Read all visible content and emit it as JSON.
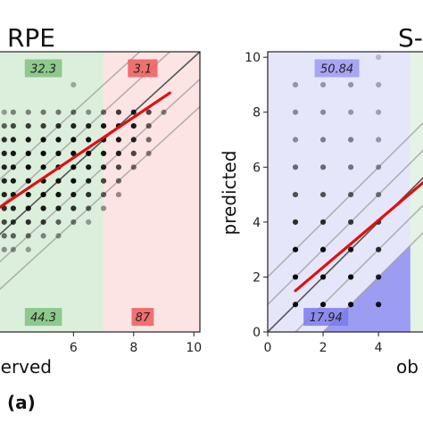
{
  "figure": {
    "panel_label": "(a)"
  },
  "chart_data": [
    {
      "type": "scatter",
      "title": "RPE",
      "xlabel": "observed",
      "ylabel": "",
      "xticks": [
        "6",
        "8",
        "10"
      ],
      "xlim": [
        3.5,
        10.2
      ],
      "ylim": [
        0,
        10.2
      ],
      "regions": [
        {
          "xmin": 3.5,
          "xmax": 7,
          "color": "#dcefdc"
        },
        {
          "xmin": 7,
          "xmax": 10.2,
          "color": "#fde4e4"
        }
      ],
      "triangle_color": "#f26b6b",
      "annotations": [
        {
          "text": "32.3",
          "x": 5.0,
          "y": 9.6,
          "color": "#7fc27f"
        },
        {
          "text": "3.1",
          "x": 8.3,
          "y": 9.6,
          "color": "#ee5a5a"
        },
        {
          "text": "44.3",
          "x": 5.0,
          "y": 0.55,
          "color": "#7fc27f"
        },
        {
          "text": "87",
          "x": 8.3,
          "y": 0.55,
          "color": "#ee5a5a"
        }
      ],
      "identity_band": [
        1,
        2
      ],
      "fit_line": {
        "x": [
          3.5,
          9.2
        ],
        "y": [
          4.5,
          8.7
        ],
        "color": "#e01010"
      },
      "points": [
        {
          "x": 6,
          "y": 9,
          "shade": 0.3
        },
        {
          "x": 3.7,
          "y": 8,
          "shade": 0.35
        },
        {
          "x": 4,
          "y": 8,
          "shade": 0.45
        },
        {
          "x": 4.5,
          "y": 8,
          "shade": 0.45
        },
        {
          "x": 5,
          "y": 8,
          "shade": 0.5
        },
        {
          "x": 5.5,
          "y": 8,
          "shade": 0.5
        },
        {
          "x": 6,
          "y": 8,
          "shade": 0.55
        },
        {
          "x": 6.5,
          "y": 8,
          "shade": 0.4
        },
        {
          "x": 7,
          "y": 8,
          "shade": 0.55
        },
        {
          "x": 7.5,
          "y": 8,
          "shade": 0.75
        },
        {
          "x": 8,
          "y": 8,
          "shade": 0.85
        },
        {
          "x": 8.5,
          "y": 8,
          "shade": 0.7
        },
        {
          "x": 9,
          "y": 8,
          "shade": 0.45
        },
        {
          "x": 3.7,
          "y": 7.5,
          "shade": 0.6
        },
        {
          "x": 4,
          "y": 7.5,
          "shade": 0.7
        },
        {
          "x": 4.5,
          "y": 7.5,
          "shade": 0.75
        },
        {
          "x": 5,
          "y": 7.5,
          "shade": 0.75
        },
        {
          "x": 5.5,
          "y": 7.5,
          "shade": 0.8
        },
        {
          "x": 6,
          "y": 7.5,
          "shade": 0.85
        },
        {
          "x": 6.5,
          "y": 7.5,
          "shade": 0.85
        },
        {
          "x": 7,
          "y": 7.5,
          "shade": 0.9
        },
        {
          "x": 7.5,
          "y": 7.5,
          "shade": 0.9
        },
        {
          "x": 8,
          "y": 7.5,
          "shade": 0.9
        },
        {
          "x": 8.5,
          "y": 7.5,
          "shade": 0.6
        },
        {
          "x": 3.7,
          "y": 7,
          "shade": 0.8
        },
        {
          "x": 4,
          "y": 7,
          "shade": 0.85
        },
        {
          "x": 4.5,
          "y": 7,
          "shade": 0.9
        },
        {
          "x": 5,
          "y": 7,
          "shade": 0.95
        },
        {
          "x": 5.5,
          "y": 7,
          "shade": 0.95
        },
        {
          "x": 6,
          "y": 7,
          "shade": 0.95
        },
        {
          "x": 6.5,
          "y": 7,
          "shade": 0.95
        },
        {
          "x": 7,
          "y": 7,
          "shade": 0.95
        },
        {
          "x": 7.5,
          "y": 7,
          "shade": 0.9
        },
        {
          "x": 8,
          "y": 7,
          "shade": 0.85
        },
        {
          "x": 8.5,
          "y": 7,
          "shade": 0.55
        },
        {
          "x": 3.7,
          "y": 6.5,
          "shade": 0.85
        },
        {
          "x": 4,
          "y": 6.5,
          "shade": 0.9
        },
        {
          "x": 4.5,
          "y": 6.5,
          "shade": 0.95
        },
        {
          "x": 5,
          "y": 6.5,
          "shade": 0.95
        },
        {
          "x": 5.5,
          "y": 6.5,
          "shade": 0.95
        },
        {
          "x": 6,
          "y": 6.5,
          "shade": 0.95
        },
        {
          "x": 6.5,
          "y": 6.5,
          "shade": 0.95
        },
        {
          "x": 7,
          "y": 6.5,
          "shade": 0.9
        },
        {
          "x": 7.5,
          "y": 6.5,
          "shade": 0.85
        },
        {
          "x": 8,
          "y": 6.5,
          "shade": 0.7
        },
        {
          "x": 8.5,
          "y": 6.5,
          "shade": 0.45
        },
        {
          "x": 3.7,
          "y": 6,
          "shade": 0.85
        },
        {
          "x": 4,
          "y": 6,
          "shade": 0.9
        },
        {
          "x": 4.5,
          "y": 6,
          "shade": 0.95
        },
        {
          "x": 5,
          "y": 6,
          "shade": 0.95
        },
        {
          "x": 5.5,
          "y": 6,
          "shade": 0.95
        },
        {
          "x": 6,
          "y": 6,
          "shade": 0.95
        },
        {
          "x": 6.5,
          "y": 6,
          "shade": 0.9
        },
        {
          "x": 7,
          "y": 6,
          "shade": 0.85
        },
        {
          "x": 7.5,
          "y": 6,
          "shade": 0.7
        },
        {
          "x": 8,
          "y": 6,
          "shade": 0.55
        },
        {
          "x": 3.7,
          "y": 5.5,
          "shade": 0.85
        },
        {
          "x": 4,
          "y": 5.5,
          "shade": 0.9
        },
        {
          "x": 4.5,
          "y": 5.5,
          "shade": 0.95
        },
        {
          "x": 5,
          "y": 5.5,
          "shade": 0.95
        },
        {
          "x": 5.5,
          "y": 5.5,
          "shade": 0.95
        },
        {
          "x": 6,
          "y": 5.5,
          "shade": 0.95
        },
        {
          "x": 6.5,
          "y": 5.5,
          "shade": 0.85
        },
        {
          "x": 7,
          "y": 5.5,
          "shade": 0.7
        },
        {
          "x": 7.5,
          "y": 5.5,
          "shade": 0.55
        },
        {
          "x": 3.7,
          "y": 5,
          "shade": 0.85
        },
        {
          "x": 4,
          "y": 5,
          "shade": 0.9
        },
        {
          "x": 4.5,
          "y": 5,
          "shade": 0.95
        },
        {
          "x": 5,
          "y": 5,
          "shade": 0.95
        },
        {
          "x": 5.5,
          "y": 5,
          "shade": 0.95
        },
        {
          "x": 6,
          "y": 5,
          "shade": 0.9
        },
        {
          "x": 6.5,
          "y": 5,
          "shade": 0.8
        },
        {
          "x": 7,
          "y": 5,
          "shade": 0.6
        },
        {
          "x": 7.5,
          "y": 5,
          "shade": 0.4
        },
        {
          "x": 3.7,
          "y": 4.5,
          "shade": 0.8
        },
        {
          "x": 4,
          "y": 4.5,
          "shade": 0.85
        },
        {
          "x": 4.5,
          "y": 4.5,
          "shade": 0.9
        },
        {
          "x": 5,
          "y": 4.5,
          "shade": 0.9
        },
        {
          "x": 5.5,
          "y": 4.5,
          "shade": 0.85
        },
        {
          "x": 6,
          "y": 4.5,
          "shade": 0.8
        },
        {
          "x": 6.5,
          "y": 4.5,
          "shade": 0.6
        },
        {
          "x": 7,
          "y": 4.5,
          "shade": 0.4
        },
        {
          "x": 3.7,
          "y": 4,
          "shade": 0.7
        },
        {
          "x": 4,
          "y": 4,
          "shade": 0.75
        },
        {
          "x": 4.5,
          "y": 4,
          "shade": 0.8
        },
        {
          "x": 5,
          "y": 4,
          "shade": 0.75
        },
        {
          "x": 5.5,
          "y": 4,
          "shade": 0.6
        },
        {
          "x": 6,
          "y": 4,
          "shade": 0.5
        },
        {
          "x": 6.5,
          "y": 4,
          "shade": 0.35
        },
        {
          "x": 3.7,
          "y": 3.5,
          "shade": 0.55
        },
        {
          "x": 4,
          "y": 3.5,
          "shade": 0.6
        },
        {
          "x": 4.5,
          "y": 3.5,
          "shade": 0.55
        },
        {
          "x": 5,
          "y": 3.5,
          "shade": 0.45
        },
        {
          "x": 5.5,
          "y": 3.5,
          "shade": 0.4
        },
        {
          "x": 3.7,
          "y": 3,
          "shade": 0.4
        },
        {
          "x": 4,
          "y": 3,
          "shade": 0.4
        },
        {
          "x": 4.5,
          "y": 3,
          "shade": 0.35
        }
      ]
    },
    {
      "type": "scatter",
      "title": "S-",
      "xlabel": "ob",
      "ylabel": "predicted",
      "xticks": [
        "0",
        "2",
        "4"
      ],
      "yticks": [
        "0",
        "2",
        "4",
        "6",
        "8",
        "10"
      ],
      "xlim": [
        0,
        5.8
      ],
      "ylim": [
        0,
        10.2
      ],
      "regions": [
        {
          "xmin": 0,
          "xmax": 5.15,
          "color": "#e6e6fb"
        },
        {
          "xmin": 5.15,
          "xmax": 5.8,
          "color": "#e5f3e5"
        }
      ],
      "triangle_color": "#8e8ef0",
      "annotations": [
        {
          "text": "50.84",
          "x": 2.5,
          "y": 9.6,
          "color": "#9a9af2"
        },
        {
          "text": "17.94",
          "x": 2.1,
          "y": 0.55,
          "color": "#7a7aec"
        }
      ],
      "identity_band": [
        1,
        2
      ],
      "fit_line": {
        "x": [
          1,
          5.8
        ],
        "y": [
          1.5,
          5.6
        ],
        "color": "#e01010"
      },
      "points": [
        {
          "x": 4,
          "y": 10,
          "shade": 0.2
        },
        {
          "x": 1,
          "y": 9,
          "shade": 0.35
        },
        {
          "x": 2,
          "y": 9,
          "shade": 0.35
        },
        {
          "x": 3,
          "y": 9,
          "shade": 0.35
        },
        {
          "x": 4,
          "y": 9,
          "shade": 0.3
        },
        {
          "x": 1,
          "y": 8,
          "shade": 0.4
        },
        {
          "x": 2,
          "y": 8,
          "shade": 0.4
        },
        {
          "x": 3,
          "y": 8,
          "shade": 0.35
        },
        {
          "x": 4,
          "y": 8,
          "shade": 0.3
        },
        {
          "x": 1,
          "y": 7,
          "shade": 0.4
        },
        {
          "x": 2,
          "y": 7,
          "shade": 0.45
        },
        {
          "x": 3,
          "y": 7,
          "shade": 0.45
        },
        {
          "x": 4,
          "y": 7,
          "shade": 0.35
        },
        {
          "x": 1,
          "y": 6,
          "shade": 0.55
        },
        {
          "x": 2,
          "y": 6,
          "shade": 0.55
        },
        {
          "x": 3,
          "y": 6,
          "shade": 0.5
        },
        {
          "x": 4,
          "y": 6,
          "shade": 0.4
        },
        {
          "x": 1,
          "y": 5,
          "shade": 0.65
        },
        {
          "x": 2,
          "y": 5,
          "shade": 0.65
        },
        {
          "x": 3,
          "y": 5,
          "shade": 0.6
        },
        {
          "x": 4,
          "y": 5,
          "shade": 0.5
        },
        {
          "x": 1,
          "y": 4,
          "shade": 0.8
        },
        {
          "x": 2,
          "y": 4,
          "shade": 0.8
        },
        {
          "x": 3,
          "y": 4,
          "shade": 0.75
        },
        {
          "x": 4,
          "y": 4,
          "shade": 0.7
        },
        {
          "x": 1,
          "y": 3,
          "shade": 0.95
        },
        {
          "x": 2,
          "y": 3,
          "shade": 0.95
        },
        {
          "x": 3,
          "y": 3,
          "shade": 0.9
        },
        {
          "x": 4,
          "y": 3,
          "shade": 0.8
        },
        {
          "x": 1,
          "y": 2,
          "shade": 0.95
        },
        {
          "x": 2,
          "y": 2,
          "shade": 0.95
        },
        {
          "x": 3,
          "y": 2,
          "shade": 0.95
        },
        {
          "x": 4,
          "y": 2,
          "shade": 0.85
        },
        {
          "x": 1,
          "y": 1,
          "shade": 0.95
        },
        {
          "x": 2,
          "y": 1,
          "shade": 0.95
        },
        {
          "x": 3,
          "y": 1,
          "shade": 0.95
        },
        {
          "x": 4,
          "y": 1,
          "shade": 0.9
        }
      ]
    }
  ]
}
